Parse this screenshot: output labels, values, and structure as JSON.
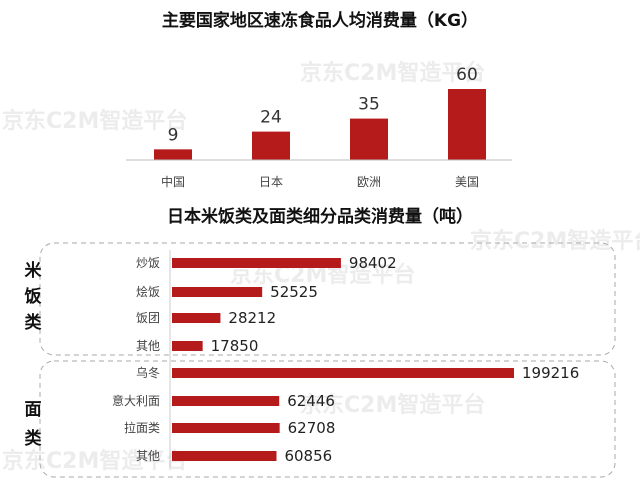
{
  "watermark": "京东C2M智造平台",
  "chart_data": [
    {
      "type": "bar",
      "title": "主要国家地区速冻食品人均消费量（KG）",
      "categories": [
        "中国",
        "日本",
        "欧洲",
        "美国"
      ],
      "values": [
        9,
        24,
        35,
        60
      ],
      "ylim": [
        0,
        60
      ],
      "grid": false,
      "color": "#b51b1b"
    },
    {
      "type": "bar",
      "orientation": "horizontal",
      "title": "日本米饭类及面类细分品类消费量（吨）",
      "groups": [
        {
          "label": "米饭类",
          "categories": [
            "炒饭",
            "烩饭",
            "饭团",
            "其他"
          ],
          "values": [
            98402,
            52525,
            28212,
            17850
          ]
        },
        {
          "label": "面类",
          "categories": [
            "乌冬",
            "意大利面",
            "拉面类",
            "其他"
          ],
          "values": [
            199216,
            62446,
            62708,
            60856
          ]
        }
      ],
      "xlim": [
        0,
        199216
      ],
      "grid": false,
      "color": "#b51b1b"
    }
  ]
}
